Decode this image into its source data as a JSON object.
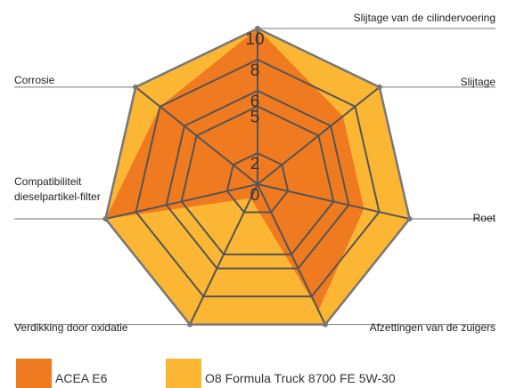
{
  "chart_data": {
    "type": "radar",
    "categories": [
      "Slijtage van de cilindervoering",
      "Slijtage",
      "Roet",
      "Afzettingen van de zuigers",
      "Verdikking door oxidatie",
      "Compatibiliteit dieselpartikel-filter",
      "Corrosie"
    ],
    "series": [
      {
        "name": "O8 Formula Truck 8700 FE 5W-30",
        "color": "#fbb634",
        "values": [
          10,
          10,
          10,
          10,
          10,
          10,
          10
        ]
      },
      {
        "name": "ACEA E6",
        "color": "#f07a1f",
        "values": [
          10,
          7,
          7,
          9,
          1,
          10,
          8
        ]
      }
    ],
    "rlim": [
      0,
      10
    ],
    "rticks": [
      0,
      2,
      5,
      6,
      8,
      10
    ],
    "grid": true,
    "legend": "bottom"
  }
}
